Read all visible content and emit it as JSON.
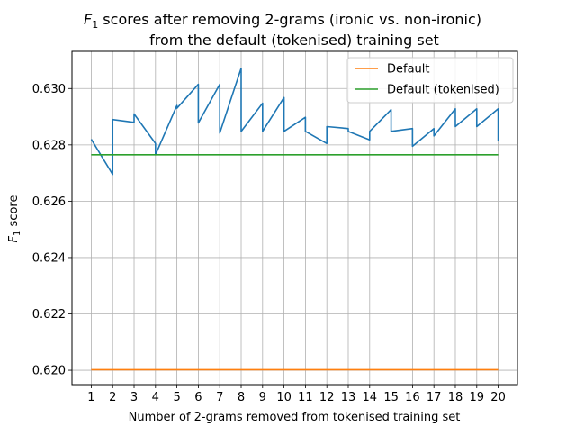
{
  "chart_data": {
    "type": "line",
    "title": {
      "line1_prefix": "F",
      "line1_subscript": "1",
      "line1_rest": " scores after removing 2-grams (ironic vs. non-ironic)",
      "line2": "from the default (tokenised) training set"
    },
    "xlabel": "Number of 2-grams removed from tokenised training set",
    "ylabel_prefix": "F",
    "ylabel_subscript": "1",
    "ylabel_rest": " score",
    "xlim": [
      0.1,
      20.9
    ],
    "ylim": [
      0.61949,
      0.63132
    ],
    "x_ticks": [
      1,
      2,
      3,
      4,
      5,
      6,
      7,
      8,
      9,
      10,
      11,
      12,
      13,
      14,
      15,
      16,
      17,
      18,
      19,
      20
    ],
    "y_ticks": [
      0.62,
      0.622,
      0.624,
      0.626,
      0.628,
      0.63
    ],
    "y_tick_labels": [
      "0.620",
      "0.622",
      "0.624",
      "0.626",
      "0.628",
      "0.630"
    ],
    "grid": true,
    "legend_position": "top-right",
    "series": [
      {
        "name": "",
        "color": "#1f77b4",
        "points": [
          [
            1,
            0.6282
          ],
          [
            1.0,
            0.6282
          ],
          [
            2,
            0.62695
          ],
          [
            2,
            0.6289
          ],
          [
            3,
            0.6288
          ],
          [
            3,
            0.6291
          ],
          [
            4,
            0.62805
          ],
          [
            4,
            0.62765
          ],
          [
            5,
            0.6294
          ],
          [
            5,
            0.6293
          ],
          [
            6,
            0.63015
          ],
          [
            6,
            0.62878
          ],
          [
            7,
            0.63015
          ],
          [
            7,
            0.62842
          ],
          [
            8,
            0.63072
          ],
          [
            8,
            0.62848
          ],
          [
            9,
            0.62948
          ],
          [
            9,
            0.62848
          ],
          [
            10,
            0.62968
          ],
          [
            10,
            0.62848
          ],
          [
            11,
            0.62898
          ],
          [
            11,
            0.62848
          ],
          [
            12,
            0.62805
          ],
          [
            12,
            0.62865
          ],
          [
            13,
            0.62858
          ],
          [
            13,
            0.62848
          ],
          [
            14,
            0.62818
          ],
          [
            14,
            0.62848
          ],
          [
            15,
            0.62925
          ],
          [
            15,
            0.62848
          ],
          [
            16,
            0.62858
          ],
          [
            16,
            0.62795
          ],
          [
            17,
            0.62858
          ],
          [
            17,
            0.62832
          ],
          [
            18,
            0.62928
          ],
          [
            18,
            0.62865
          ],
          [
            19,
            0.62928
          ],
          [
            19,
            0.62865
          ],
          [
            20,
            0.62928
          ],
          [
            20,
            0.62815
          ]
        ]
      },
      {
        "name": "Default",
        "color": "#ff7f0e",
        "points": [
          [
            1,
            0.62002
          ],
          [
            20,
            0.62002
          ]
        ]
      },
      {
        "name": "Default (tokenised)",
        "color": "#2ca02c",
        "points": [
          [
            1,
            0.62765
          ],
          [
            20,
            0.62765
          ]
        ]
      }
    ]
  }
}
